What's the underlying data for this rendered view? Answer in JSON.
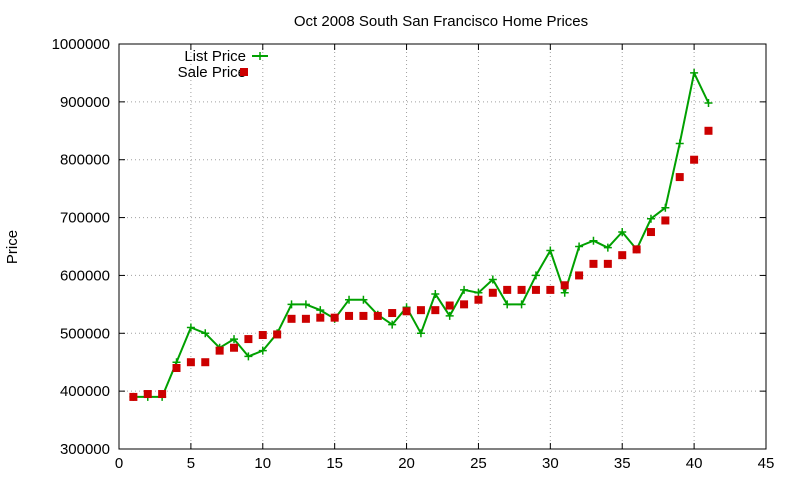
{
  "chart_data": {
    "type": "line",
    "title": "Oct 2008 South San Francisco Home Prices",
    "xlabel": "",
    "ylabel": "Price",
    "xlim": [
      0,
      45
    ],
    "ylim": [
      300000,
      1000000
    ],
    "xticks": [
      "0",
      "5",
      "10",
      "15",
      "20",
      "25",
      "30",
      "35",
      "40",
      "45"
    ],
    "yticks": [
      "300000",
      "400000",
      "500000",
      "600000",
      "700000",
      "800000",
      "900000",
      "1000000"
    ],
    "grid": true,
    "legend_position": "top-left",
    "series": [
      {
        "name": "List Price",
        "style": "lines+crosses",
        "color": "#00a000",
        "x": [
          1,
          2,
          3,
          4,
          5,
          6,
          7,
          8,
          9,
          10,
          11,
          12,
          13,
          14,
          15,
          16,
          17,
          18,
          19,
          20,
          21,
          22,
          23,
          24,
          25,
          26,
          27,
          28,
          29,
          30,
          31,
          32,
          33,
          34,
          35,
          36,
          37,
          38,
          39,
          40,
          41
        ],
        "y": [
          390000,
          390000,
          390000,
          450000,
          510000,
          500000,
          475000,
          490000,
          460000,
          470000,
          500000,
          550000,
          550000,
          540000,
          525000,
          558000,
          558000,
          532000,
          515000,
          545000,
          500000,
          568000,
          530000,
          575000,
          570000,
          593000,
          550000,
          550000,
          600000,
          643000,
          570000,
          650000,
          660000,
          648000,
          675000,
          645000,
          698000,
          717000,
          828000,
          950000,
          898000
        ]
      },
      {
        "name": "Sale Price",
        "style": "points",
        "color": "#cc0000",
        "x": [
          1,
          2,
          3,
          4,
          5,
          6,
          7,
          8,
          9,
          10,
          11,
          12,
          13,
          14,
          15,
          16,
          17,
          18,
          19,
          20,
          21,
          22,
          23,
          24,
          25,
          26,
          27,
          28,
          29,
          30,
          31,
          32,
          33,
          34,
          35,
          36,
          37,
          38,
          39,
          40,
          41
        ],
        "y": [
          390000,
          395000,
          395000,
          440000,
          450000,
          450000,
          470000,
          475000,
          490000,
          497000,
          498000,
          525000,
          525000,
          527000,
          527000,
          530000,
          530000,
          530000,
          535000,
          538000,
          540000,
          540000,
          548000,
          550000,
          558000,
          570000,
          575000,
          575000,
          575000,
          575000,
          583000,
          600000,
          620000,
          620000,
          635000,
          645000,
          675000,
          695000,
          770000,
          800000,
          850000
        ]
      }
    ]
  }
}
